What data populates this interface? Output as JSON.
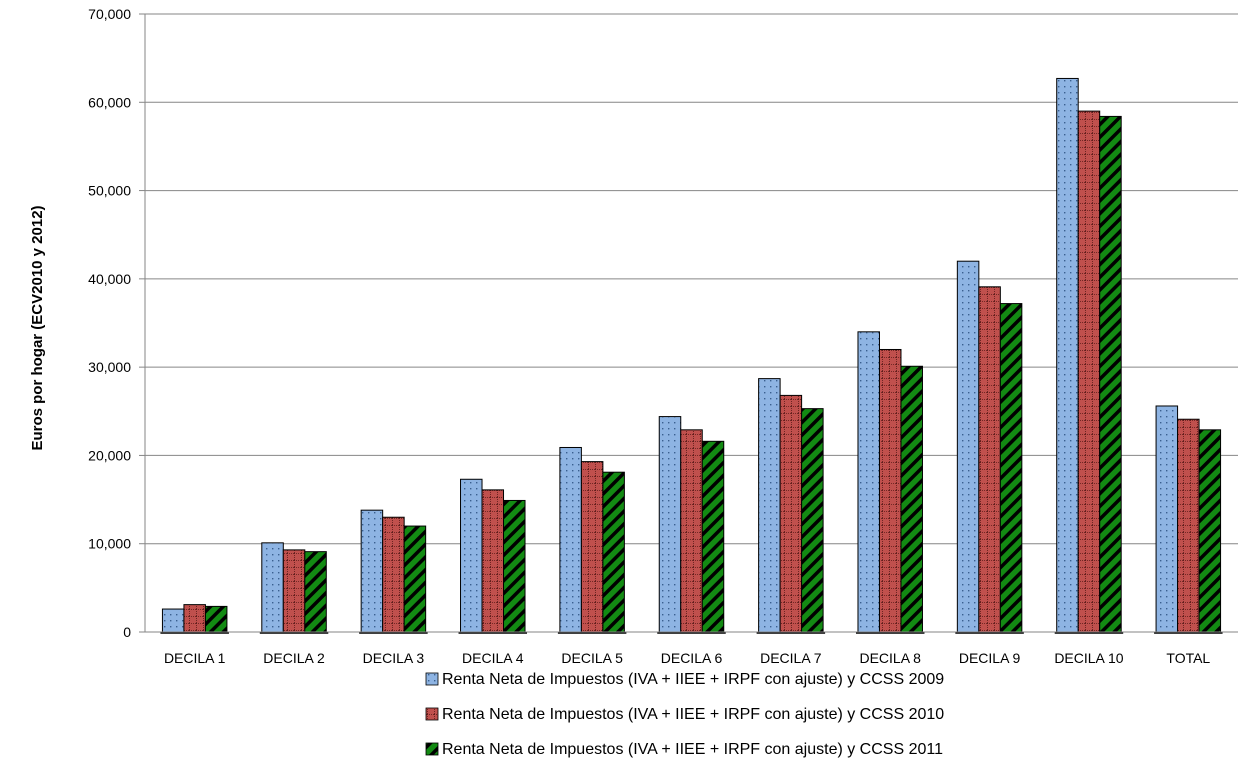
{
  "chart_data": {
    "type": "bar",
    "title": "",
    "xlabel": "",
    "ylabel": "Euros por hogar (ECV2010 y 2012)",
    "ylim": [
      0,
      70000
    ],
    "y_ticks": [
      0,
      10000,
      20000,
      30000,
      40000,
      50000,
      60000,
      70000
    ],
    "y_tick_labels": [
      "0",
      "10,000",
      "20,000",
      "30,000",
      "40,000",
      "50,000",
      "60,000",
      "70,000"
    ],
    "grid": true,
    "legend_position": "bottom",
    "categories": [
      "DECILA 1",
      "DECILA 2",
      "DECILA 3",
      "DECILA 4",
      "DECILA 5",
      "DECILA 6",
      "DECILA 7",
      "DECILA 8",
      "DECILA 9",
      "DECILA 10",
      "TOTAL"
    ],
    "series": [
      {
        "name": "Renta Neta de Impuestos (IVA + IIEE + IRPF con ajuste) y CCSS 2009",
        "color": "#8eb4e3",
        "pattern": "dots",
        "values": [
          2600,
          10100,
          13800,
          17300,
          20900,
          24400,
          28700,
          34000,
          42000,
          62700,
          25600
        ]
      },
      {
        "name": "Renta Neta de Impuestos (IVA + IIEE + IRPF con ajuste) y CCSS 2010",
        "color": "#c0504d",
        "pattern": "grid",
        "values": [
          3100,
          9300,
          13000,
          16100,
          19300,
          22900,
          26800,
          32000,
          39100,
          59000,
          24100
        ]
      },
      {
        "name": "Renta Neta de Impuestos (IVA + IIEE + IRPF con ajuste) y CCSS 2011",
        "color": "#1e8c1e",
        "pattern": "diagonal",
        "values": [
          2900,
          9100,
          12000,
          14900,
          18100,
          21600,
          25300,
          30100,
          37200,
          58400,
          22900
        ]
      }
    ]
  }
}
